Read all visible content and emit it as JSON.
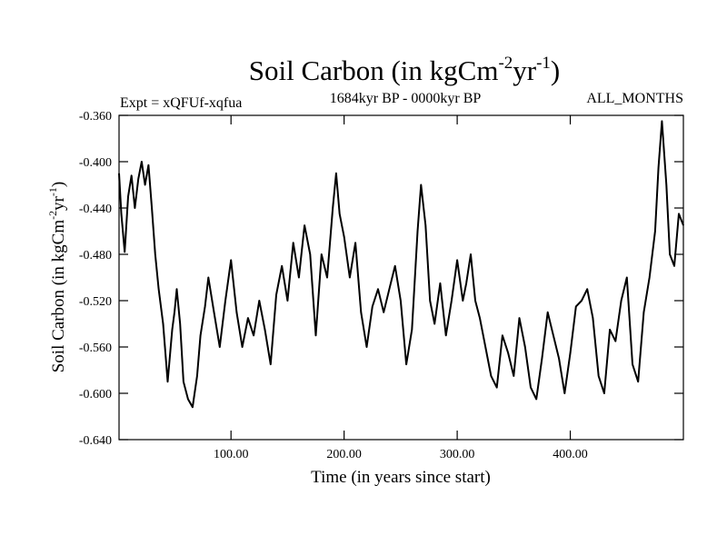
{
  "chart_data": {
    "type": "line",
    "title": "Soil Carbon (in kgCm",
    "title_sup1": "-2",
    "title_mid": "yr",
    "title_sup2": "-1",
    "title_end": ")",
    "subtitle_left": "Expt = xQFUf-xqfua",
    "subtitle_center": "1684kyr BP - 0000kyr BP",
    "subtitle_right": "ALL_MONTHS",
    "xlabel": "Time (in years since start)",
    "ylabel": "Soil Carbon (in kgCm",
    "ylabel_sup1": "-2",
    "ylabel_mid": "yr",
    "ylabel_sup2": "-1",
    "ylabel_end": ")",
    "xlim": [
      1,
      500
    ],
    "ylim": [
      -0.64,
      -0.36
    ],
    "xticks": [
      {
        "value": 100,
        "label": "100.00"
      },
      {
        "value": 200,
        "label": "200.00"
      },
      {
        "value": 300,
        "label": "300.00"
      },
      {
        "value": 400,
        "label": "400.00"
      }
    ],
    "yticks": [
      {
        "value": -0.36,
        "label": "-0.360"
      },
      {
        "value": -0.4,
        "label": "-0.400"
      },
      {
        "value": -0.44,
        "label": "-0.440"
      },
      {
        "value": -0.48,
        "label": "-0.480"
      },
      {
        "value": -0.52,
        "label": "-0.520"
      },
      {
        "value": -0.56,
        "label": "-0.560"
      },
      {
        "value": -0.6,
        "label": "-0.600"
      },
      {
        "value": -0.64,
        "label": "-0.640"
      }
    ],
    "series": [
      {
        "name": "Soil Carbon",
        "x": [
          1,
          3,
          6,
          9,
          12,
          15,
          18,
          21,
          24,
          27,
          30,
          33,
          36,
          40,
          44,
          48,
          50,
          52,
          55,
          58,
          62,
          66,
          70,
          73,
          77,
          80,
          85,
          90,
          95,
          100,
          105,
          110,
          115,
          120,
          125,
          130,
          135,
          140,
          145,
          150,
          155,
          160,
          165,
          170,
          175,
          180,
          185,
          190,
          193,
          196,
          200,
          205,
          210,
          215,
          220,
          225,
          230,
          235,
          240,
          245,
          250,
          255,
          260,
          265,
          268,
          272,
          276,
          280,
          285,
          290,
          295,
          300,
          305,
          308,
          312,
          316,
          320,
          325,
          330,
          335,
          340,
          345,
          350,
          355,
          360,
          365,
          370,
          375,
          380,
          385,
          390,
          395,
          400,
          405,
          410,
          415,
          420,
          425,
          430,
          435,
          440,
          445,
          450,
          455,
          460,
          465,
          470,
          475,
          478,
          481,
          485,
          488,
          492,
          496,
          500
        ],
        "y": [
          -0.41,
          -0.445,
          -0.478,
          -0.43,
          -0.412,
          -0.44,
          -0.415,
          -0.4,
          -0.42,
          -0.403,
          -0.44,
          -0.48,
          -0.51,
          -0.54,
          -0.59,
          -0.545,
          -0.53,
          -0.51,
          -0.54,
          -0.59,
          -0.605,
          -0.612,
          -0.585,
          -0.55,
          -0.525,
          -0.5,
          -0.53,
          -0.56,
          -0.52,
          -0.485,
          -0.53,
          -0.56,
          -0.535,
          -0.55,
          -0.52,
          -0.545,
          -0.575,
          -0.515,
          -0.49,
          -0.52,
          -0.47,
          -0.5,
          -0.455,
          -0.48,
          -0.55,
          -0.48,
          -0.5,
          -0.44,
          -0.41,
          -0.445,
          -0.465,
          -0.5,
          -0.47,
          -0.53,
          -0.56,
          -0.525,
          -0.51,
          -0.53,
          -0.51,
          -0.49,
          -0.52,
          -0.575,
          -0.545,
          -0.46,
          -0.42,
          -0.455,
          -0.52,
          -0.54,
          -0.505,
          -0.55,
          -0.52,
          -0.485,
          -0.52,
          -0.505,
          -0.48,
          -0.52,
          -0.535,
          -0.56,
          -0.585,
          -0.595,
          -0.55,
          -0.565,
          -0.585,
          -0.535,
          -0.56,
          -0.595,
          -0.605,
          -0.57,
          -0.53,
          -0.55,
          -0.57,
          -0.6,
          -0.565,
          -0.525,
          -0.52,
          -0.51,
          -0.535,
          -0.585,
          -0.6,
          -0.545,
          -0.555,
          -0.52,
          -0.5,
          -0.575,
          -0.59,
          -0.53,
          -0.5,
          -0.46,
          -0.405,
          -0.365,
          -0.42,
          -0.48,
          -0.49,
          -0.445,
          -0.455
        ]
      }
    ]
  }
}
